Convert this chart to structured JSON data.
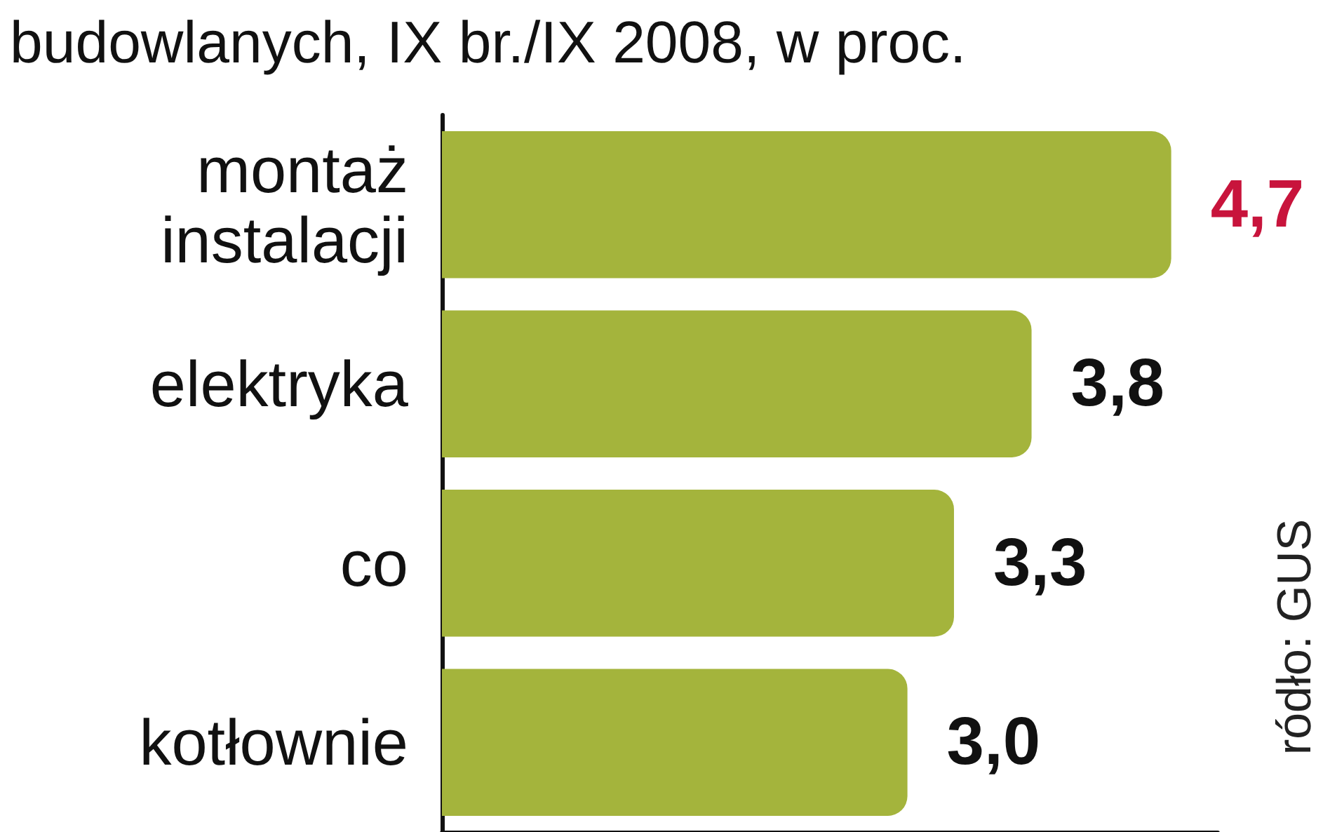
{
  "chart_data": {
    "type": "bar",
    "orientation": "horizontal",
    "title": "budowlanych, IX br./IX 2008, w proc.",
    "categories": [
      "montaż\ninstalacji",
      "elektryka",
      "co",
      "kotłownie"
    ],
    "values": [
      4.7,
      3.8,
      3.3,
      3.0
    ],
    "value_labels": [
      "4,7",
      "3,8",
      "3,3",
      "3,0"
    ],
    "color": "#a4b43c",
    "xlim": [
      0,
      5
    ],
    "tick_labels": "y",
    "annotations": [
      "ródło: GUS"
    ]
  }
}
